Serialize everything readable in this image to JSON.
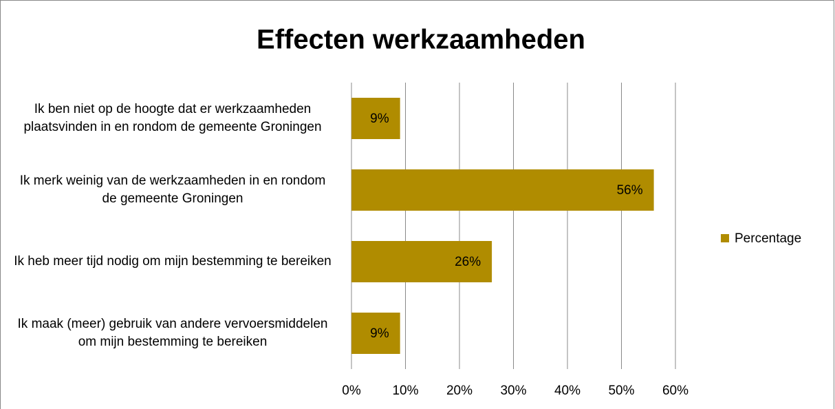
{
  "chart_data": {
    "type": "bar",
    "orientation": "horizontal",
    "title": "Effecten werkzaamheden",
    "categories": [
      "Ik ben niet op de hoogte dat er werkzaamheden plaatsvinden in en rondom de gemeente Groningen",
      "Ik merk weinig van de werkzaamheden in en rondom de gemeente Groningen",
      "Ik heb meer tijd nodig om mijn bestemming te bereiken",
      "Ik maak (meer) gebruik van andere vervoersmiddelen om mijn bestemming te bereiken"
    ],
    "series": [
      {
        "name": "Percentage",
        "color": "#b08c00",
        "values": [
          9,
          56,
          26,
          9
        ],
        "value_labels": [
          "9%",
          "56%",
          "26%",
          "9%"
        ]
      }
    ],
    "xlim": [
      0,
      60
    ],
    "xticks": [
      {
        "value": 0,
        "label": "0%"
      },
      {
        "value": 10,
        "label": "10%"
      },
      {
        "value": 20,
        "label": "20%"
      },
      {
        "value": 30,
        "label": "30%"
      },
      {
        "value": 40,
        "label": "40%"
      },
      {
        "value": 50,
        "label": "50%"
      },
      {
        "value": 60,
        "label": "60%"
      }
    ],
    "grid": true,
    "legend": "right"
  }
}
